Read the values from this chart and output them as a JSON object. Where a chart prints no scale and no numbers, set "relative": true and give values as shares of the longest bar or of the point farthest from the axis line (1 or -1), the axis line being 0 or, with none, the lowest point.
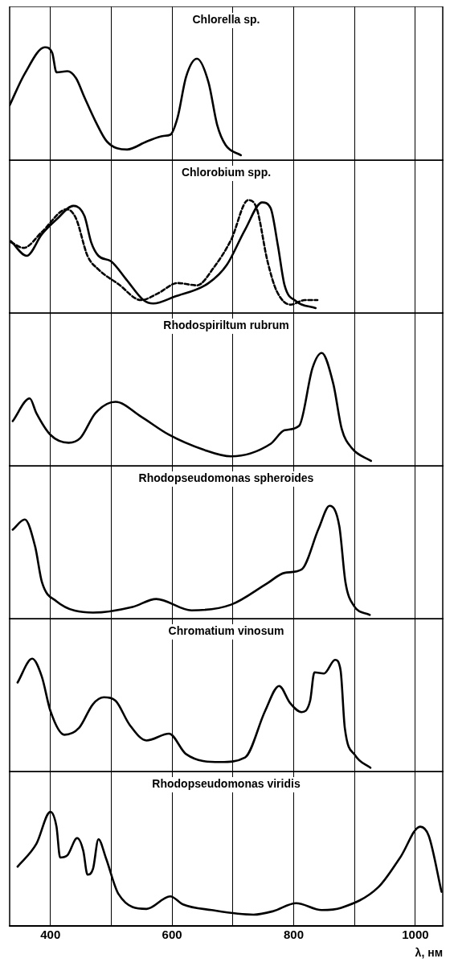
{
  "chart_data": [
    {
      "type": "line",
      "title": "Chlorella sp.",
      "relative": true,
      "xlim": [
        333,
        1045
      ],
      "xticks": [
        400,
        {
          "value": 500,
          "label": null
        },
        600,
        {
          "value": 700,
          "label": null
        },
        800,
        {
          "value": 900,
          "label": null
        },
        1000
      ],
      "grid": "x",
      "tick_labels": false,
      "legend": false,
      "marker": "none",
      "series": [
        {
          "color": "#000000",
          "line_style": "solid",
          "x": [
            333,
            358,
            391,
            403,
            410,
            428,
            442,
            456,
            474,
            493,
            526,
            558,
            586,
            597,
            609,
            623,
            641,
            660,
            674,
            688,
            713
          ],
          "values": [
            0.49,
            0.77,
            1.0,
            0.95,
            0.78,
            0.79,
            0.73,
            0.56,
            0.35,
            0.17,
            0.1,
            0.17,
            0.22,
            0.23,
            0.38,
            0.74,
            0.9,
            0.69,
            0.32,
            0.14,
            0.05
          ]
        }
      ]
    },
    {
      "type": "line",
      "title": "Chlorobium spp.",
      "relative": true,
      "xlim": [
        333,
        1045
      ],
      "xticks": [
        400,
        {
          "value": 500,
          "label": null
        },
        600,
        {
          "value": 700,
          "label": null
        },
        800,
        {
          "value": 900,
          "label": null
        },
        1000
      ],
      "grid": "x",
      "tick_labels": false,
      "legend": false,
      "marker": "none",
      "series": [
        {
          "color": "#000000",
          "line_style": "solid",
          "x": [
            335,
            361,
            386,
            410,
            438,
            456,
            467,
            479,
            500,
            525,
            553,
            569,
            604,
            660,
            690,
            720,
            748,
            762,
            774,
            785,
            804,
            836
          ],
          "values": [
            0.64,
            0.51,
            0.7,
            0.83,
            0.95,
            0.86,
            0.63,
            0.51,
            0.46,
            0.3,
            0.12,
            0.09,
            0.15,
            0.27,
            0.43,
            0.74,
            0.98,
            0.93,
            0.6,
            0.25,
            0.11,
            0.05
          ]
        },
        {
          "color": "#000000",
          "line_style": "dashed",
          "x": [
            335,
            356,
            386,
            427,
            442,
            461,
            479,
            512,
            549,
            577,
            609,
            641,
            669,
            697,
            725,
            739,
            757,
            772,
            795,
            818,
            839
          ],
          "values": [
            0.63,
            0.58,
            0.72,
            0.92,
            0.84,
            0.51,
            0.39,
            0.26,
            0.12,
            0.18,
            0.27,
            0.25,
            0.41,
            0.65,
            1.0,
            0.93,
            0.46,
            0.2,
            0.08,
            0.12,
            0.12
          ]
        }
      ]
    },
    {
      "type": "line",
      "title": "Rhodospiriltum rubrum",
      "relative": true,
      "xlim": [
        333,
        1045
      ],
      "xticks": [
        400,
        {
          "value": 500,
          "label": null
        },
        600,
        {
          "value": 700,
          "label": null
        },
        800,
        {
          "value": 900,
          "label": null
        },
        1000
      ],
      "grid": "x",
      "tick_labels": false,
      "legend": false,
      "marker": "none",
      "series": [
        {
          "color": "#000000",
          "line_style": "solid",
          "x": [
            338,
            366,
            377,
            400,
            430,
            449,
            474,
            507,
            549,
            595,
            651,
            697,
            762,
            785,
            809,
            831,
            846,
            865,
            879,
            896,
            927
          ],
          "values": [
            0.4,
            0.6,
            0.47,
            0.28,
            0.21,
            0.25,
            0.47,
            0.57,
            0.44,
            0.28,
            0.15,
            0.09,
            0.2,
            0.32,
            0.36,
            0.87,
            1.0,
            0.73,
            0.33,
            0.16,
            0.05
          ]
        }
      ]
    },
    {
      "type": "line",
      "title": "Rhodopseudomonas spheroides",
      "relative": true,
      "xlim": [
        333,
        1045
      ],
      "xticks": [
        400,
        {
          "value": 500,
          "label": null
        },
        600,
        {
          "value": 700,
          "label": null
        },
        800,
        {
          "value": 900,
          "label": null
        },
        1000
      ],
      "grid": "x",
      "tick_labels": false,
      "legend": false,
      "marker": "none",
      "series": [
        {
          "color": "#000000",
          "line_style": "solid",
          "x": [
            338,
            358,
            375,
            386,
            410,
            470,
            535,
            574,
            632,
            697,
            757,
            785,
            813,
            841,
            859,
            875,
            885,
            899,
            925
          ],
          "values": [
            0.79,
            0.88,
            0.64,
            0.33,
            0.16,
            0.06,
            0.11,
            0.18,
            0.08,
            0.13,
            0.32,
            0.41,
            0.44,
            0.8,
            1.0,
            0.82,
            0.33,
            0.12,
            0.04
          ]
        }
      ]
    },
    {
      "type": "line",
      "title": "Chromatium vinosum",
      "relative": true,
      "xlim": [
        333,
        1045
      ],
      "xticks": [
        400,
        {
          "value": 500,
          "label": null
        },
        600,
        {
          "value": 700,
          "label": null
        },
        800,
        {
          "value": 900,
          "label": null
        },
        1000
      ],
      "grid": "x",
      "tick_labels": false,
      "legend": false,
      "marker": "none",
      "series": [
        {
          "color": "#000000",
          "line_style": "solid",
          "x": [
            346,
            370,
            386,
            400,
            423,
            447,
            470,
            488,
            507,
            530,
            558,
            595,
            623,
            679,
            720,
            753,
            776,
            794,
            813,
            827,
            834,
            850,
            868,
            877,
            884,
            901,
            926
          ],
          "values": [
            0.79,
            1.0,
            0.84,
            0.54,
            0.33,
            0.39,
            0.6,
            0.66,
            0.63,
            0.42,
            0.28,
            0.34,
            0.16,
            0.09,
            0.13,
            0.54,
            0.76,
            0.61,
            0.53,
            0.63,
            0.88,
            0.87,
            0.99,
            0.9,
            0.39,
            0.15,
            0.04
          ]
        }
      ]
    },
    {
      "type": "line",
      "title": "Rhodopseudomonas viridis",
      "xlabel": "λ, нм",
      "relative": true,
      "xlim": [
        333,
        1045
      ],
      "xticks": [
        400,
        {
          "value": 500,
          "label": null
        },
        600,
        {
          "value": 700,
          "label": null
        },
        800,
        {
          "value": 900,
          "label": null
        },
        1000
      ],
      "grid": "x",
      "tick_labels": "x",
      "legend": false,
      "marker": "none",
      "series": [
        {
          "color": "#000000",
          "line_style": "solid",
          "x": [
            346,
            377,
            400,
            410,
            416,
            428,
            444,
            454,
            461,
            470,
            479,
            491,
            512,
            558,
            597,
            618,
            665,
            734,
            766,
            804,
            846,
            878,
            939,
            975,
            1008,
            1022,
            1043
          ],
          "values": [
            0.52,
            0.72,
            1.0,
            0.87,
            0.6,
            0.62,
            0.77,
            0.66,
            0.45,
            0.5,
            0.76,
            0.6,
            0.28,
            0.15,
            0.26,
            0.19,
            0.14,
            0.1,
            0.13,
            0.2,
            0.14,
            0.16,
            0.34,
            0.6,
            0.87,
            0.79,
            0.3
          ]
        }
      ]
    }
  ]
}
